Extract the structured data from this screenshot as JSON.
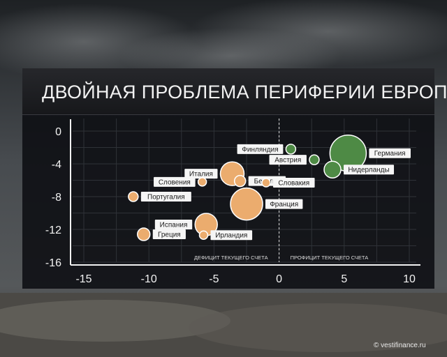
{
  "chart_data": {
    "type": "scatter",
    "title": "ДВОЙНАЯ ПРОБЛЕМА ПЕРИФЕРИИ ЕВРОПЫ",
    "xlim": [
      -15,
      10
    ],
    "ylim": [
      -16,
      0
    ],
    "xticks": [
      "-15",
      "-10",
      "-5",
      "0",
      "5",
      "10"
    ],
    "yticks": [
      "0",
      "-4",
      "-8",
      "-12",
      "-16"
    ],
    "grid": true,
    "annotations": {
      "left": "ДЕФИЦИТ ТЕКУЩЕГО СЧЕТА",
      "right": "ПРОФИЦИТ ТЕКУЩЕГО СЧЕТА"
    },
    "colors": {
      "deficit": "#ebac6e",
      "surplus": "#4e8a45"
    },
    "points": [
      {
        "label": "Германия",
        "x": 5.3,
        "y": -2.7,
        "r": 26,
        "group": "surplus",
        "label_side": "right"
      },
      {
        "label": "Финляндия",
        "x": 0.9,
        "y": -2.2,
        "r": 7,
        "group": "surplus",
        "label_side": "left"
      },
      {
        "label": "Австрия",
        "x": 2.7,
        "y": -3.5,
        "r": 7,
        "group": "surplus",
        "label_side": "left"
      },
      {
        "label": "Нидерланды",
        "x": 4.1,
        "y": -4.7,
        "r": 12,
        "group": "surplus",
        "label_side": "right"
      },
      {
        "label": "Италия",
        "x": -3.6,
        "y": -5.2,
        "r": 17,
        "group": "deficit",
        "label_side": "left"
      },
      {
        "label": "Бельгия",
        "x": -3.0,
        "y": -6.1,
        "r": 8,
        "group": "deficit",
        "label_side": "right"
      },
      {
        "label": "Словения",
        "x": -5.9,
        "y": -6.2,
        "r": 6,
        "group": "deficit",
        "label_side": "left"
      },
      {
        "label": "Словакия",
        "x": -1.0,
        "y": -6.3,
        "r": 6,
        "group": "deficit",
        "label_side": "right"
      },
      {
        "label": "Франция",
        "x": -2.5,
        "y": -8.9,
        "r": 23,
        "group": "deficit",
        "label_side": "right"
      },
      {
        "label": "Португалия",
        "x": -11.2,
        "y": -8.0,
        "r": 7,
        "group": "deficit",
        "label_side": "right"
      },
      {
        "label": "Испания",
        "x": -5.6,
        "y": -11.4,
        "r": 16,
        "group": "deficit",
        "label_side": "left"
      },
      {
        "label": "Ирландия",
        "x": -5.8,
        "y": -12.7,
        "r": 6,
        "group": "deficit",
        "label_side": "right"
      },
      {
        "label": "Греция",
        "x": -10.4,
        "y": -12.6,
        "r": 9,
        "group": "deficit",
        "label_side": "right"
      }
    ]
  },
  "watermark": "© vestifinance.ru"
}
